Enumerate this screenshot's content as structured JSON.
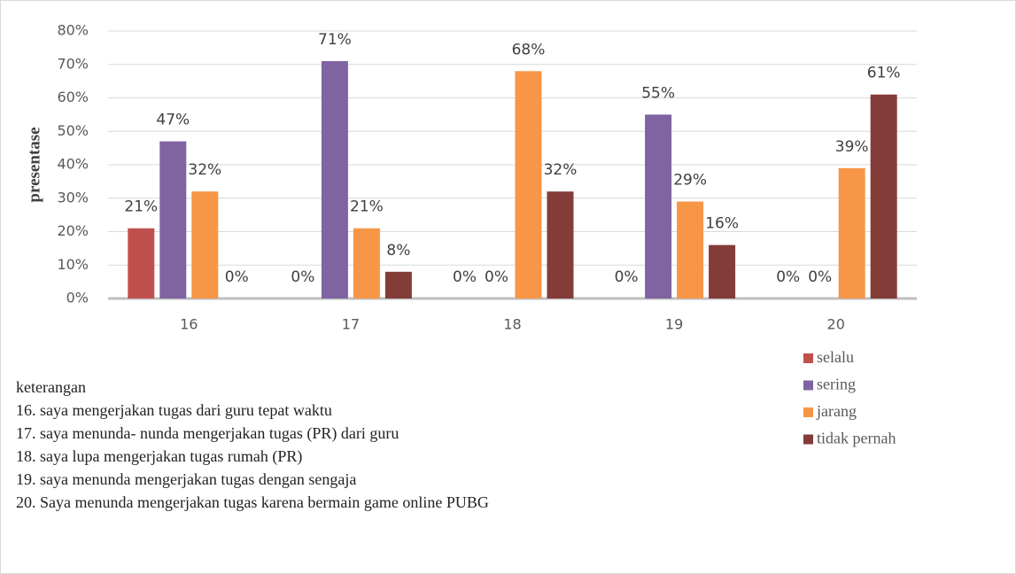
{
  "chart_data": {
    "type": "bar",
    "y_label": "presentase",
    "categories": [
      "16",
      "17",
      "18",
      "19",
      "20"
    ],
    "series": [
      {
        "name": "selalu",
        "color": "#c0504d",
        "values": [
          21,
          0,
          0,
          0,
          0
        ],
        "value_labels": [
          "21%",
          "0%",
          "0%",
          "0%",
          "0%"
        ]
      },
      {
        "name": "sering",
        "color": "#8064a2",
        "values": [
          47,
          71,
          0,
          55,
          0
        ],
        "value_labels": [
          "47%",
          "71%",
          "0%",
          "55%",
          "0%"
        ]
      },
      {
        "name": "jarang",
        "color": "#f79646",
        "values": [
          32,
          21,
          68,
          29,
          39
        ],
        "value_labels": [
          "32%",
          "21%",
          "68%",
          "29%",
          "39%"
        ]
      },
      {
        "name": "tidak pernah",
        "color": "#843c39",
        "values": [
          0,
          8,
          32,
          16,
          61
        ],
        "value_labels": [
          "0%",
          "8%",
          "32%",
          "16%",
          "61%"
        ]
      }
    ],
    "ylim": [
      0,
      80
    ],
    "yticks": [
      {
        "value": 0,
        "label": "0%"
      },
      {
        "value": 10,
        "label": "10%"
      },
      {
        "value": 20,
        "label": "20%"
      },
      {
        "value": 30,
        "label": "30%"
      },
      {
        "value": 40,
        "label": "40%"
      },
      {
        "value": 50,
        "label": "50%"
      },
      {
        "value": 60,
        "label": "60%"
      },
      {
        "value": 70,
        "label": "70%"
      },
      {
        "value": 80,
        "label": "80%"
      }
    ],
    "grid": true,
    "legend": "right",
    "annotations": [
      "keterangan",
      "16. saya mengerjakan tugas dari guru tepat waktu",
      "17. saya menunda- nunda mengerjakan tugas (PR) dari guru",
      "18. saya lupa mengerjakan tugas rumah (PR)",
      "19. saya menunda mengerjakan tugas dengan sengaja",
      "20. Saya menunda mengerjakan tugas karena bermain game online PUBG"
    ]
  }
}
